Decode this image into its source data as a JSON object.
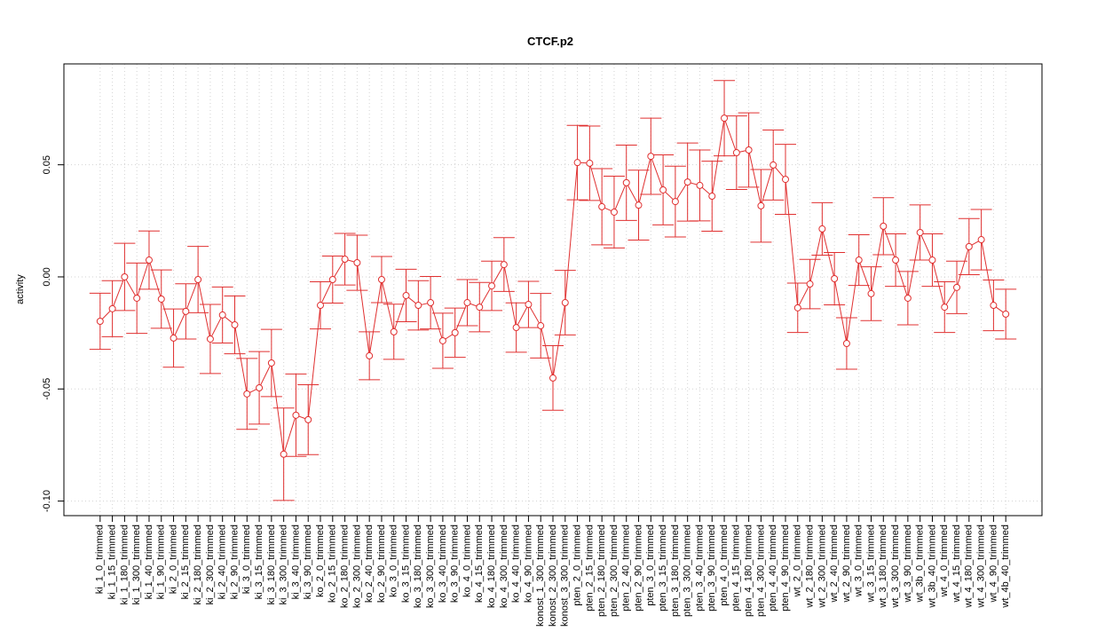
{
  "chart_data": {
    "type": "line",
    "title": "CTCF.p2",
    "y_label": "activity",
    "categories": [
      "ki_1_0_trimmed",
      "ki_1_15_trimmed",
      "ki_1_180_trimmed",
      "ki_1_300_trimmed",
      "ki_1_40_trimmed",
      "ki_1_90_trimmed",
      "ki_2_0_trimmed",
      "ki_2_15_trimmed",
      "ki_2_180_trimmed",
      "ki_2_300_trimmed",
      "ki_2_40_trimmed",
      "ki_2_90_trimmed",
      "ki_3_0_trimmed",
      "ki_3_15_trimmed",
      "ki_3_180_trimmed",
      "ki_3_300_trimmed",
      "ki_3_40_trimmed",
      "ki_3_90_trimmed",
      "ko_2_0_trimmed",
      "ko_2_15_trimmed",
      "ko_2_180_trimmed",
      "ko_2_300_trimmed",
      "ko_2_40_trimmed",
      "ko_2_90_trimmed",
      "ko_3_0_trimmed",
      "ko_3_15_trimmed",
      "ko_3_180_trimmed",
      "ko_3_300_trimmed",
      "ko_3_40_trimmed",
      "ko_3_90_trimmed",
      "ko_4_0_trimmed",
      "ko_4_15_trimmed",
      "ko_4_180_trimmed",
      "ko_4_300_trimmed",
      "ko_4_40_trimmed",
      "ko_4_90_trimmed",
      "konost_1_300_trimmed",
      "konost_2_300_trimmed",
      "konost_3_300_trimmed",
      "pten_2_0_trimmed",
      "pten_2_15_trimmed",
      "pten_2_180_trimmed",
      "pten_2_300_trimmed",
      "pten_2_40_trimmed",
      "pten_2_90_trimmed",
      "pten_3_0_trimmed",
      "pten_3_15_trimmed",
      "pten_3_180_trimmed",
      "pten_3_300_trimmed",
      "pten_3_40_trimmed",
      "pten_3_90_trimmed",
      "pten_4_0_trimmed",
      "pten_4_15_trimmed",
      "pten_4_180_trimmed",
      "pten_4_300_trimmed",
      "pten_4_40_trimmed",
      "pten_4_90_trimmed",
      "wt_2_0_trimmed",
      "wt_2_180_trimmed",
      "wt_2_300_trimmed",
      "wt_2_40_trimmed",
      "wt_2_90_trimmed",
      "wt_3_0_trimmed",
      "wt_3_15_trimmed",
      "wt_3_180_trimmed",
      "wt_3_300_trimmed",
      "wt_3_90_trimmed",
      "wt_3b_0_trimmed",
      "wt_3b_40_trimmed",
      "wt_4_0_trimmed",
      "wt_4_15_trimmed",
      "wt_4_180_trimmed",
      "wt_4_300_trimmed",
      "wt_4_90_trimmed",
      "wt_4b_40_trimmed"
    ],
    "series": [
      {
        "color": "#e03030",
        "values": [
          -0.0198,
          -0.0142,
          0.0,
          -0.0095,
          0.0075,
          -0.0099,
          -0.0273,
          -0.0154,
          -0.0012,
          -0.0277,
          -0.017,
          -0.0214,
          -0.0522,
          -0.0495,
          -0.0384,
          -0.0791,
          -0.0617,
          -0.0637,
          -0.0127,
          -0.0012,
          0.0079,
          0.0063,
          -0.0352,
          -0.0012,
          -0.0245,
          -0.0083,
          -0.0127,
          -0.0115,
          -0.0285,
          -0.0249,
          -0.0115,
          -0.0135,
          -0.004,
          0.0055,
          -0.0226,
          -0.0123,
          -0.0218,
          -0.0451,
          -0.0115,
          0.051,
          0.0507,
          0.0313,
          0.0289,
          0.042,
          0.032,
          0.0538,
          0.0388,
          0.0336,
          0.0423,
          0.0408,
          0.036,
          0.0708,
          0.0554,
          0.0566,
          0.0317,
          0.0499,
          0.0435,
          -0.0138,
          -0.0032,
          0.0214,
          -0.0008,
          -0.0297,
          0.0075,
          -0.0075,
          0.0226,
          0.0075,
          -0.0095,
          0.0198,
          0.0075,
          -0.0135,
          -0.0047,
          0.0135,
          0.0166,
          -0.0127,
          -0.0166
        ],
        "errors": [
          0.0125,
          0.0125,
          0.015,
          0.0157,
          0.013,
          0.013,
          0.013,
          0.0123,
          0.0148,
          0.0154,
          0.0125,
          0.0129,
          0.0158,
          0.0162,
          0.015,
          0.0206,
          0.0184,
          0.0156,
          0.0105,
          0.0105,
          0.0115,
          0.0123,
          0.0107,
          0.0103,
          0.0123,
          0.0117,
          0.011,
          0.0117,
          0.0123,
          0.011,
          0.0103,
          0.011,
          0.011,
          0.012,
          0.011,
          0.0103,
          0.0144,
          0.0144,
          0.0144,
          0.0166,
          0.0166,
          0.017,
          0.016,
          0.0168,
          0.0156,
          0.017,
          0.0156,
          0.0158,
          0.0174,
          0.0158,
          0.0156,
          0.0168,
          0.0164,
          0.0166,
          0.0162,
          0.0156,
          0.0156,
          0.011,
          0.011,
          0.0117,
          0.0117,
          0.0115,
          0.0113,
          0.012,
          0.0127,
          0.0117,
          0.0119,
          0.0123,
          0.0117,
          0.0113,
          0.0117,
          0.0125,
          0.0135,
          0.0113,
          0.0111
        ]
      }
    ],
    "ylim": [
      -0.1065,
      0.095
    ],
    "yticks": [
      {
        "value": -0.1,
        "label": "-0.10"
      },
      -0.05,
      {
        "value": 0,
        "label": "0.00"
      },
      0.05
    ],
    "grid": true
  }
}
